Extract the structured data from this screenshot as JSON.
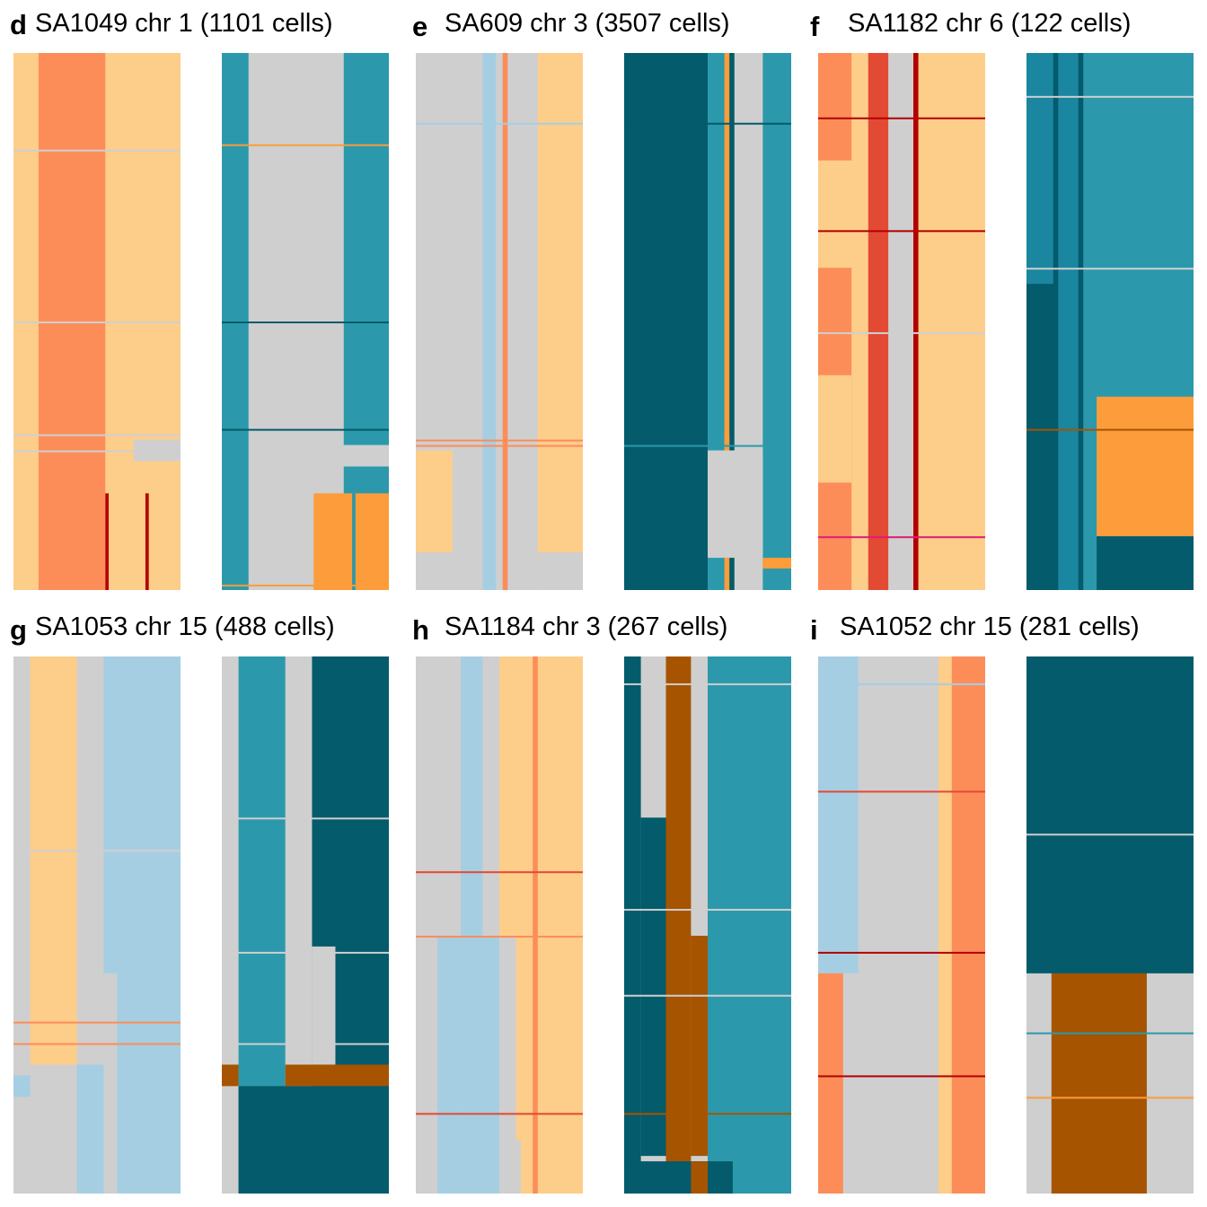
{
  "colors": {
    "grey": "#cfcfcf",
    "light_blue": "#a6cee3",
    "peach": "#fdcd8a",
    "salmon": "#fc8d59",
    "red": "#e34a33",
    "dark_red": "#b30000",
    "magenta": "#dd1c77",
    "teal": "#2b99ab",
    "mid_teal": "#1b86a0",
    "dark_teal": "#035b6b",
    "orange": "#fd9c3a",
    "brown": "#a65400"
  },
  "chart_data": [
    {
      "type": "heatmap",
      "letter": "d",
      "title": "SA1049 chr 1 (1101 cells)",
      "heatmaps": [
        {
          "name": "total-copy-number",
          "columns": [
            {
              "w": 0.15,
              "c": "peach"
            },
            {
              "w": 0.4,
              "c": "salmon"
            },
            {
              "w": 0.45,
              "c": "peach"
            }
          ],
          "blocks": [
            {
              "x0": 0.72,
              "x1": 1.0,
              "y0": 0.72,
              "y1": 0.76,
              "c": "grey"
            },
            {
              "x0": 0.55,
              "x1": 1.0,
              "y0": 0.76,
              "y1": 1.0,
              "c": "peach"
            },
            {
              "x0": 0.55,
              "x1": 0.57,
              "y0": 0.82,
              "y1": 1.0,
              "c": "dark_red"
            },
            {
              "x0": 0.79,
              "x1": 0.81,
              "y0": 0.82,
              "y1": 1.0,
              "c": "dark_red"
            }
          ],
          "streaks": [
            {
              "y": 0.18,
              "c": "grey"
            },
            {
              "y": 0.5,
              "c": "grey"
            },
            {
              "y": 0.71,
              "c": "grey"
            },
            {
              "y": 0.74,
              "c": "grey"
            }
          ]
        },
        {
          "name": "allele-specific-state",
          "columns": [
            {
              "w": 0.16,
              "c": "teal"
            },
            {
              "w": 0.57,
              "c": "grey"
            },
            {
              "w": 0.27,
              "c": "teal"
            }
          ],
          "blocks": [
            {
              "x0": 0.55,
              "x1": 1.0,
              "y0": 0.73,
              "y1": 0.77,
              "c": "grey"
            },
            {
              "x0": 0.55,
              "x1": 1.0,
              "y0": 0.82,
              "y1": 1.0,
              "c": "orange"
            },
            {
              "x0": 0.78,
              "x1": 0.8,
              "y0": 0.82,
              "y1": 1.0,
              "c": "teal"
            }
          ],
          "streaks": [
            {
              "y": 0.17,
              "c": "orange"
            },
            {
              "y": 0.5,
              "c": "dark_teal"
            },
            {
              "y": 0.7,
              "c": "dark_teal"
            },
            {
              "y": 0.99,
              "c": "orange"
            }
          ]
        }
      ]
    },
    {
      "type": "heatmap",
      "letter": "e",
      "title": "SA609 chr 3 (3507 cells)",
      "heatmaps": [
        {
          "name": "total-copy-number",
          "columns": [
            {
              "w": 0.4,
              "c": "grey"
            },
            {
              "w": 0.08,
              "c": "light_blue"
            },
            {
              "w": 0.04,
              "c": "grey"
            },
            {
              "w": 0.03,
              "c": "salmon"
            },
            {
              "w": 0.18,
              "c": "grey"
            },
            {
              "w": 0.27,
              "c": "peach"
            }
          ],
          "blocks": [
            {
              "x0": 0.0,
              "x1": 0.22,
              "y0": 0.74,
              "y1": 0.93,
              "c": "peach"
            },
            {
              "x0": 0.73,
              "x1": 1.0,
              "y0": 0.93,
              "y1": 1.0,
              "c": "grey"
            }
          ],
          "streaks": [
            {
              "y": 0.13,
              "c": "light_blue"
            },
            {
              "y": 0.72,
              "c": "salmon"
            },
            {
              "y": 0.73,
              "c": "salmon"
            }
          ]
        },
        {
          "name": "allele-specific-state",
          "columns": [
            {
              "w": 0.5,
              "c": "dark_teal"
            },
            {
              "w": 0.1,
              "c": "teal"
            },
            {
              "w": 0.03,
              "c": "orange"
            },
            {
              "w": 0.03,
              "c": "dark_teal"
            },
            {
              "w": 0.17,
              "c": "grey"
            },
            {
              "w": 0.17,
              "c": "teal"
            }
          ],
          "blocks": [
            {
              "x0": 0.5,
              "x1": 0.83,
              "y0": 0.74,
              "y1": 0.94,
              "c": "grey"
            },
            {
              "x0": 0.6,
              "x1": 0.63,
              "y0": 0.71,
              "y1": 0.74,
              "c": "orange"
            },
            {
              "x0": 0.83,
              "x1": 1.0,
              "y0": 0.94,
              "y1": 0.96,
              "c": "orange"
            }
          ],
          "streaks": [
            {
              "y": 0.13,
              "c": "dark_teal"
            },
            {
              "y": 0.73,
              "c": "teal"
            }
          ]
        }
      ]
    },
    {
      "type": "heatmap",
      "letter": "f",
      "title": "SA1182 chr 6 (122 cells)",
      "heatmaps": [
        {
          "name": "total-copy-number",
          "columns": [
            {
              "w": 0.2,
              "c": "salmon"
            },
            {
              "w": 0.1,
              "c": "peach"
            },
            {
              "w": 0.12,
              "c": "red"
            },
            {
              "w": 0.15,
              "c": "grey"
            },
            {
              "w": 0.03,
              "c": "dark_red"
            },
            {
              "w": 0.4,
              "c": "peach"
            }
          ],
          "blocks": [
            {
              "x0": 0.0,
              "x1": 0.22,
              "y0": 0.2,
              "y1": 0.4,
              "c": "peach"
            },
            {
              "x0": 0.0,
              "x1": 0.2,
              "y0": 0.6,
              "y1": 0.8,
              "c": "peach"
            }
          ],
          "streaks": [
            {
              "y": 0.12,
              "c": "dark_red"
            },
            {
              "y": 0.33,
              "c": "dark_red"
            },
            {
              "y": 0.52,
              "c": "grey"
            },
            {
              "y": 0.9,
              "c": "magenta"
            }
          ]
        },
        {
          "name": "allele-specific-state",
          "columns": [
            {
              "w": 0.16,
              "c": "mid_teal"
            },
            {
              "w": 0.03,
              "c": "dark_teal"
            },
            {
              "w": 0.12,
              "c": "mid_teal"
            },
            {
              "w": 0.03,
              "c": "dark_teal"
            },
            {
              "w": 0.66,
              "c": "teal"
            }
          ],
          "blocks": [
            {
              "x0": 0.0,
              "x1": 0.18,
              "y0": 0.43,
              "y1": 1.0,
              "c": "dark_teal"
            },
            {
              "x0": 0.42,
              "x1": 1.0,
              "y0": 0.64,
              "y1": 0.9,
              "c": "orange"
            },
            {
              "x0": 0.42,
              "x1": 1.0,
              "y0": 0.9,
              "y1": 1.0,
              "c": "dark_teal"
            }
          ],
          "streaks": [
            {
              "y": 0.08,
              "c": "grey"
            },
            {
              "y": 0.4,
              "c": "grey"
            },
            {
              "y": 0.7,
              "c": "brown"
            }
          ]
        }
      ]
    },
    {
      "type": "heatmap",
      "letter": "g",
      "title": "SA1053 chr 15 (488 cells)",
      "heatmaps": [
        {
          "name": "total-copy-number",
          "columns": [
            {
              "w": 0.1,
              "c": "grey"
            },
            {
              "w": 0.28,
              "c": "peach"
            },
            {
              "w": 0.16,
              "c": "grey"
            },
            {
              "w": 0.46,
              "c": "light_blue"
            }
          ],
          "blocks": [
            {
              "x0": 0.54,
              "x1": 0.62,
              "y0": 0.59,
              "y1": 1.0,
              "c": "grey"
            },
            {
              "x0": 0.0,
              "x1": 0.38,
              "y0": 0.76,
              "y1": 1.0,
              "c": "grey"
            },
            {
              "x0": 0.38,
              "x1": 0.54,
              "y0": 0.76,
              "y1": 1.0,
              "c": "light_blue"
            },
            {
              "x0": 0.0,
              "x1": 0.1,
              "y0": 0.78,
              "y1": 0.82,
              "c": "light_blue"
            }
          ],
          "streaks": [
            {
              "y": 0.68,
              "c": "salmon"
            },
            {
              "y": 0.72,
              "c": "salmon"
            },
            {
              "y": 0.36,
              "c": "grey"
            }
          ]
        },
        {
          "name": "allele-specific-state",
          "columns": [
            {
              "w": 0.1,
              "c": "grey"
            },
            {
              "w": 0.28,
              "c": "teal"
            },
            {
              "w": 0.16,
              "c": "grey"
            },
            {
              "w": 0.46,
              "c": "dark_teal"
            }
          ],
          "blocks": [
            {
              "x0": 0.54,
              "x1": 0.68,
              "y0": 0.54,
              "y1": 0.76,
              "c": "grey"
            },
            {
              "x0": 0.0,
              "x1": 0.1,
              "y0": 0.76,
              "y1": 0.8,
              "c": "brown"
            },
            {
              "x0": 0.38,
              "x1": 1.0,
              "y0": 0.76,
              "y1": 0.8,
              "c": "brown"
            },
            {
              "x0": 0.1,
              "x1": 1.0,
              "y0": 0.8,
              "y1": 1.0,
              "c": "dark_teal"
            }
          ],
          "streaks": [
            {
              "y": 0.3,
              "c": "grey"
            },
            {
              "y": 0.55,
              "c": "grey"
            },
            {
              "y": 0.72,
              "c": "grey"
            }
          ]
        }
      ]
    },
    {
      "type": "heatmap",
      "letter": "h",
      "title": "SA1184 chr 3 (267 cells)",
      "heatmaps": [
        {
          "name": "total-copy-number",
          "columns": [
            {
              "w": 0.27,
              "c": "grey"
            },
            {
              "w": 0.13,
              "c": "light_blue"
            },
            {
              "w": 0.1,
              "c": "grey"
            },
            {
              "w": 0.2,
              "c": "peach"
            },
            {
              "w": 0.03,
              "c": "salmon"
            },
            {
              "w": 0.27,
              "c": "peach"
            }
          ],
          "blocks": [
            {
              "x0": 0.13,
              "x1": 0.27,
              "y0": 0.52,
              "y1": 1.0,
              "c": "light_blue"
            },
            {
              "x0": 0.4,
              "x1": 0.5,
              "y0": 0.52,
              "y1": 1.0,
              "c": "light_blue"
            },
            {
              "x0": 0.5,
              "x1": 0.6,
              "y0": 0.52,
              "y1": 1.0,
              "c": "grey"
            },
            {
              "x0": 0.6,
              "x1": 0.63,
              "y0": 0.9,
              "y1": 1.0,
              "c": "grey"
            }
          ],
          "streaks": [
            {
              "y": 0.52,
              "c": "salmon"
            },
            {
              "y": 0.4,
              "c": "red"
            },
            {
              "y": 0.85,
              "c": "red"
            }
          ]
        },
        {
          "name": "allele-specific-state",
          "columns": [
            {
              "w": 0.1,
              "c": "dark_teal"
            },
            {
              "w": 0.15,
              "c": "grey"
            },
            {
              "w": 0.15,
              "c": "brown"
            },
            {
              "w": 0.1,
              "c": "grey"
            },
            {
              "w": 0.5,
              "c": "teal"
            }
          ],
          "blocks": [
            {
              "x0": 0.1,
              "x1": 0.25,
              "y0": 0.3,
              "y1": 0.93,
              "c": "dark_teal"
            },
            {
              "x0": 0.4,
              "x1": 0.5,
              "y0": 0.52,
              "y1": 0.93,
              "c": "brown"
            },
            {
              "x0": 0.0,
              "x1": 0.65,
              "y0": 0.94,
              "y1": 1.0,
              "c": "dark_teal"
            },
            {
              "x0": 0.4,
              "x1": 0.5,
              "y0": 0.94,
              "y1": 1.0,
              "c": "brown"
            }
          ],
          "streaks": [
            {
              "y": 0.05,
              "c": "grey"
            },
            {
              "y": 0.47,
              "c": "grey"
            },
            {
              "y": 0.63,
              "c": "grey"
            },
            {
              "y": 0.85,
              "c": "brown"
            }
          ]
        }
      ]
    },
    {
      "type": "heatmap",
      "letter": "i",
      "title": "SA1052 chr 15 (281 cells)",
      "heatmaps": [
        {
          "name": "total-copy-number",
          "columns": [
            {
              "w": 0.24,
              "c": "light_blue"
            },
            {
              "w": 0.48,
              "c": "grey"
            },
            {
              "w": 0.08,
              "c": "peach"
            },
            {
              "w": 0.2,
              "c": "salmon"
            }
          ],
          "blocks": [
            {
              "x0": 0.0,
              "x1": 0.15,
              "y0": 0.59,
              "y1": 1.0,
              "c": "salmon"
            },
            {
              "x0": 0.15,
              "x1": 0.24,
              "y0": 0.59,
              "y1": 1.0,
              "c": "grey"
            }
          ],
          "streaks": [
            {
              "y": 0.05,
              "c": "light_blue"
            },
            {
              "y": 0.25,
              "c": "red"
            },
            {
              "y": 0.55,
              "c": "dark_red"
            },
            {
              "y": 0.78,
              "c": "dark_red"
            }
          ]
        },
        {
          "name": "allele-specific-state",
          "columns": [
            {
              "w": 1.0,
              "c": "dark_teal"
            }
          ],
          "blocks": [
            {
              "x0": 0.0,
              "x1": 0.15,
              "y0": 0.59,
              "y1": 1.0,
              "c": "grey"
            },
            {
              "x0": 0.15,
              "x1": 0.72,
              "y0": 0.59,
              "y1": 1.0,
              "c": "brown"
            },
            {
              "x0": 0.72,
              "x1": 1.0,
              "y0": 0.59,
              "y1": 1.0,
              "c": "grey"
            }
          ],
          "streaks": [
            {
              "y": 0.33,
              "c": "grey"
            },
            {
              "y": 0.7,
              "c": "teal"
            },
            {
              "y": 0.82,
              "c": "orange"
            }
          ]
        }
      ]
    }
  ]
}
